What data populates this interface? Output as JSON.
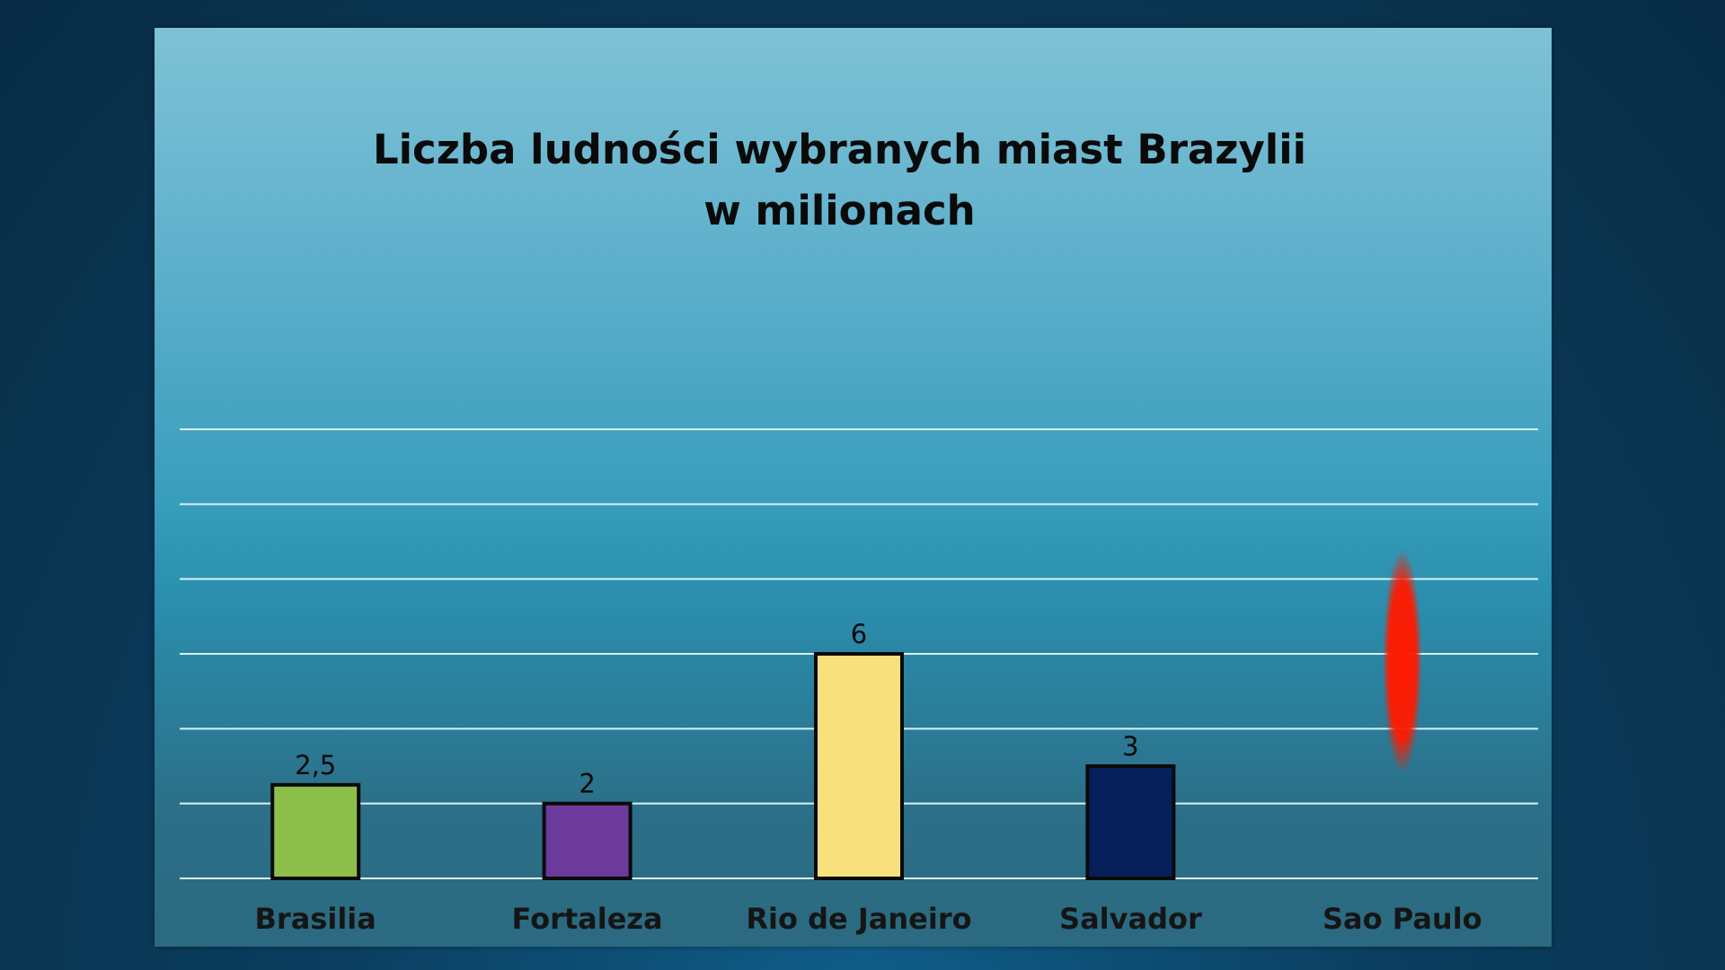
{
  "chart_data": {
    "type": "bar",
    "title_lines": [
      "Liczba ludności wybranych miast Brazylii",
      "w milionach"
    ],
    "categories": [
      "Brasilia",
      "Fortaleza",
      "Rio de Janeiro",
      "Salvador",
      "Sao Paulo"
    ],
    "values": [
      2.5,
      2,
      6,
      3,
      null
    ],
    "value_labels": [
      "2,5",
      "2",
      "6",
      "3",
      ""
    ],
    "bar_colors": [
      "#8cbf4a",
      "#6b3a9a",
      "#f8e07d",
      "#06205c",
      null
    ],
    "highlight_marker": {
      "category": "Sao Paulo",
      "color": "#ff1a00",
      "shape": "glowing-ellipse"
    },
    "ylim": [
      0,
      12
    ],
    "grid": true,
    "gridline_count": 7,
    "xlabel": "",
    "ylabel": ""
  },
  "colors": {
    "background": "#0b3d5e",
    "panel_top": "#7ec2d6",
    "panel_bottom": "#2b6a80",
    "gridline": "#d9f1f7"
  }
}
